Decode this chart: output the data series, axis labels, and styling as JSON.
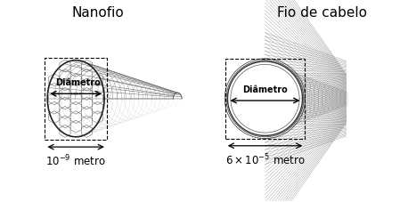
{
  "title_left": "Nanofio",
  "title_right": "Fio de cabelo",
  "label_diameter": "Diâmetro",
  "label_left_measure": "$10^{-9}$ metro",
  "label_right_measure": "$6 \\times 10^{-5}$ metro",
  "bg_color": "#ffffff",
  "text_color": "#000000",
  "mesh_color": "#666666",
  "figsize": [
    4.58,
    2.28
  ],
  "dpi": 100
}
